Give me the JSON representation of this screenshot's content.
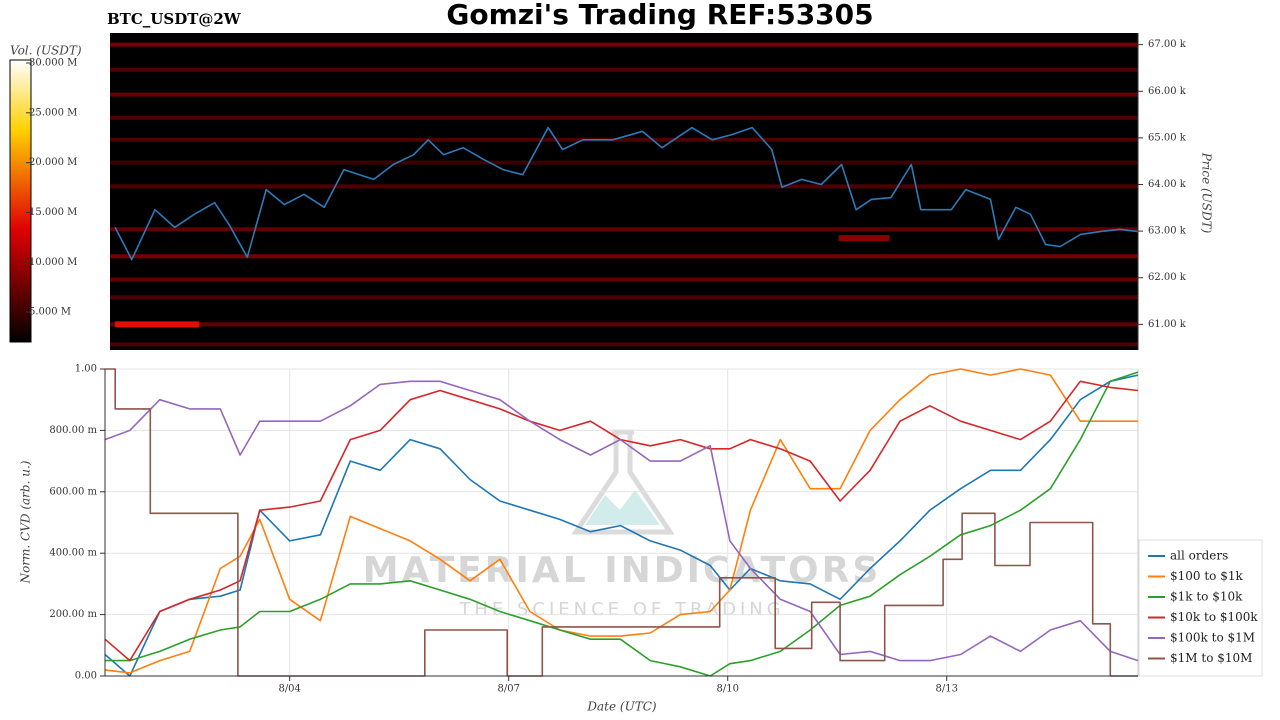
{
  "title": "Gomzi's Trading REF:53305",
  "watermark": [
    "MATERIAL INDICATORS",
    "THE SCIENCE OF TRADING"
  ],
  "chart_data": [
    {
      "type": "heatmap",
      "subtitle": "BTC_USDT@2W",
      "ylabel": "Price (USDT)",
      "xlim": [
        1.47,
        15.62
      ],
      "ylim": [
        60450,
        67250
      ],
      "yticks": [
        {
          "value": 61000,
          "label": "61.00 k"
        },
        {
          "value": 62000,
          "label": "62.00 k"
        },
        {
          "value": 63000,
          "label": "63.00 k"
        },
        {
          "value": 64000,
          "label": "64.00 k"
        },
        {
          "value": 65000,
          "label": "65.00 k"
        },
        {
          "value": 66000,
          "label": "66.00 k"
        },
        {
          "value": 67000,
          "label": "67.00 k"
        }
      ],
      "colorbar": {
        "label": "Vol. (USDT)",
        "lim": [
          2,
          30.3
        ],
        "ticks": [
          {
            "value": 5,
            "label": "5.000 M"
          },
          {
            "value": 10,
            "label": "10.000 M"
          },
          {
            "value": 15,
            "label": "15.000 M"
          },
          {
            "value": 20,
            "label": "20.000 M"
          },
          {
            "value": 25,
            "label": "25.000 M"
          },
          {
            "value": 30,
            "label": "30.000 M"
          }
        ]
      },
      "bands": {
        "price": [
          67000,
          66460,
          65930,
          65430,
          64960,
          64470,
          63960,
          63040,
          62460,
          61960,
          61580,
          61000,
          60570
        ],
        "volume": [
          8,
          6,
          7,
          6,
          6,
          5,
          6,
          7,
          8,
          7,
          6,
          7,
          6
        ]
      },
      "walls": [
        {
          "x": [
            1.54,
            2.7
          ],
          "price": 61000,
          "volume": 14
        },
        {
          "x": [
            11.5,
            12.2
          ],
          "price": 62850,
          "volume": 9
        }
      ],
      "price_line": {
        "color": "#2b7bba",
        "x": [
          1.54,
          1.77,
          2.09,
          2.36,
          2.63,
          2.91,
          3.11,
          3.36,
          3.62,
          3.87,
          4.14,
          4.42,
          4.69,
          5.1,
          5.37,
          5.65,
          5.85,
          6.06,
          6.33,
          6.61,
          6.88,
          7.15,
          7.5,
          7.7,
          7.98,
          8.39,
          8.8,
          9.07,
          9.48,
          9.76,
          10.03,
          10.31,
          10.58,
          10.72,
          10.99,
          11.26,
          11.54,
          11.74,
          11.95,
          12.22,
          12.5,
          12.63,
          13.05,
          13.25,
          13.59,
          13.7,
          13.94,
          14.14,
          14.35,
          14.55,
          14.83,
          15.1,
          15.37,
          15.62
        ],
        "values": [
          63080,
          62390,
          63460,
          63080,
          63360,
          63610,
          63140,
          62440,
          63890,
          63570,
          63790,
          63510,
          64320,
          64110,
          64430,
          64640,
          64960,
          64640,
          64790,
          64540,
          64320,
          64210,
          65220,
          64750,
          64960,
          64960,
          65140,
          64790,
          65220,
          64960,
          65070,
          65220,
          64750,
          63940,
          64110,
          64000,
          64430,
          63460,
          63680,
          63720,
          64430,
          63460,
          63460,
          63890,
          63680,
          62820,
          63510,
          63360,
          62710,
          62670,
          62930,
          62990,
          63040,
          62990
        ]
      }
    },
    {
      "type": "line",
      "xlabel": "Date (UTC)",
      "ylabel": "Norm. CVD (arb. u.)",
      "grid": true,
      "xlim": [
        1.47,
        15.62
      ],
      "ylim": [
        0,
        1
      ],
      "xticks": [
        {
          "value": 4,
          "label": "8/04"
        },
        {
          "value": 7,
          "label": "8/07"
        },
        {
          "value": 10,
          "label": "8/10"
        },
        {
          "value": 13,
          "label": "8/13"
        }
      ],
      "yticks": [
        {
          "value": 0,
          "label": "0.00"
        },
        {
          "value": 0.2,
          "label": "200.00 m"
        },
        {
          "value": 0.4,
          "label": "400.00 m"
        },
        {
          "value": 0.6,
          "label": "600.00 m"
        },
        {
          "value": 0.8,
          "label": "800.00 m"
        },
        {
          "value": 1,
          "label": "1.00"
        }
      ],
      "x": [
        1.47,
        1.81,
        2.22,
        2.63,
        3.05,
        3.32,
        3.59,
        4.0,
        4.42,
        4.83,
        5.24,
        5.65,
        6.06,
        6.47,
        6.88,
        7.29,
        7.7,
        8.12,
        8.53,
        8.94,
        9.35,
        9.76,
        10.03,
        10.31,
        10.72,
        11.13,
        11.54,
        11.95,
        12.36,
        12.77,
        13.19,
        13.6,
        14.01,
        14.42,
        14.83,
        15.24,
        15.62
      ],
      "series": [
        {
          "name": "all orders",
          "color": "#1f77b4",
          "values": [
            0.07,
            0.0,
            0.21,
            0.25,
            0.26,
            0.28,
            0.54,
            0.44,
            0.46,
            0.7,
            0.67,
            0.77,
            0.74,
            0.64,
            0.57,
            0.54,
            0.51,
            0.47,
            0.49,
            0.44,
            0.41,
            0.36,
            0.28,
            0.35,
            0.31,
            0.3,
            0.25,
            0.35,
            0.44,
            0.54,
            0.61,
            0.67,
            0.67,
            0.77,
            0.9,
            0.96,
            0.98
          ]
        },
        {
          "name": "$100 to $1k",
          "color": "#ff7f0e",
          "values": [
            0.02,
            0.01,
            0.05,
            0.08,
            0.35,
            0.39,
            0.51,
            0.25,
            0.18,
            0.52,
            0.48,
            0.44,
            0.38,
            0.31,
            0.38,
            0.21,
            0.15,
            0.13,
            0.13,
            0.14,
            0.2,
            0.21,
            0.28,
            0.54,
            0.77,
            0.61,
            0.61,
            0.8,
            0.9,
            0.98,
            1.0,
            0.98,
            1.0,
            0.98,
            0.83,
            0.83,
            0.83
          ]
        },
        {
          "name": "$1k to $10k",
          "color": "#2ca02c",
          "values": [
            0.05,
            0.05,
            0.08,
            0.12,
            0.15,
            0.16,
            0.21,
            0.21,
            0.25,
            0.3,
            0.3,
            0.31,
            0.28,
            0.25,
            0.21,
            0.18,
            0.15,
            0.12,
            0.12,
            0.05,
            0.03,
            0.0,
            0.04,
            0.05,
            0.08,
            0.15,
            0.23,
            0.26,
            0.33,
            0.39,
            0.46,
            0.49,
            0.54,
            0.61,
            0.77,
            0.96,
            0.99
          ]
        },
        {
          "name": "$10k to $100k",
          "color": "#d62728",
          "values": [
            0.12,
            0.05,
            0.21,
            0.25,
            0.28,
            0.31,
            0.54,
            0.55,
            0.57,
            0.77,
            0.8,
            0.9,
            0.93,
            0.9,
            0.87,
            0.83,
            0.8,
            0.83,
            0.77,
            0.75,
            0.77,
            0.74,
            0.74,
            0.77,
            0.74,
            0.7,
            0.57,
            0.67,
            0.83,
            0.88,
            0.83,
            0.8,
            0.77,
            0.83,
            0.96,
            0.94,
            0.93
          ]
        },
        {
          "name": "$100k to $1M",
          "color": "#9467bd",
          "values": [
            0.77,
            0.8,
            0.9,
            0.87,
            0.87,
            0.72,
            0.83,
            0.83,
            0.83,
            0.88,
            0.95,
            0.96,
            0.96,
            0.93,
            0.9,
            0.83,
            0.77,
            0.72,
            0.77,
            0.7,
            0.7,
            0.75,
            0.44,
            0.35,
            0.25,
            0.21,
            0.07,
            0.08,
            0.05,
            0.05,
            0.07,
            0.13,
            0.08,
            0.15,
            0.18,
            0.08,
            0.05
          ]
        },
        {
          "name": "$1M to $10M",
          "color": "#8c564b",
          "x": [
            1.47,
            1.61,
            1.61,
            2.09,
            2.09,
            3.29,
            3.29,
            5.85,
            5.85,
            6.98,
            6.98,
            7.46,
            7.46,
            9.89,
            9.89,
            10.65,
            10.65,
            11.15,
            11.15,
            11.54,
            11.54,
            12.15,
            12.15,
            12.95,
            12.95,
            13.21,
            13.21,
            13.66,
            13.66,
            14.14,
            14.14,
            15.0,
            15.0,
            15.24,
            15.24,
            15.62
          ],
          "values": [
            1.0,
            1.0,
            0.87,
            0.87,
            0.53,
            0.53,
            0.0,
            0.0,
            0.15,
            0.15,
            0.0,
            0.0,
            0.16,
            0.16,
            0.32,
            0.32,
            0.09,
            0.09,
            0.24,
            0.24,
            0.05,
            0.05,
            0.23,
            0.23,
            0.38,
            0.38,
            0.53,
            0.53,
            0.36,
            0.36,
            0.5,
            0.5,
            0.17,
            0.17,
            0.0,
            0.0
          ]
        }
      ]
    }
  ]
}
